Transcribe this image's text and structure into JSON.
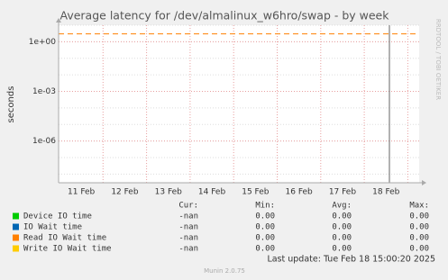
{
  "chart_data": {
    "type": "line",
    "title": "Average latency for /dev/almalinux_w6hro/swap - by week",
    "ylabel": "seconds",
    "side_text": "RRDTOOL / TOBI OETIKER",
    "log_y": true,
    "ylim": [
      3e-09,
      10
    ],
    "yticks": [
      {
        "value": 1,
        "label": "1e+00"
      },
      {
        "value": 0.001,
        "label": "1e-03"
      },
      {
        "value": 1e-06,
        "label": "1e-06"
      }
    ],
    "categories": [
      "11 Feb",
      "12 Feb",
      "13 Feb",
      "14 Feb",
      "15 Feb",
      "16 Feb",
      "17 Feb",
      "18 Feb"
    ],
    "grid": true,
    "threshold_line": {
      "value": 3,
      "color": "#ff8000"
    },
    "legend_table": {
      "headers": [
        "Cur:",
        "Min:",
        "Avg:",
        "Max:"
      ],
      "rows": [
        {
          "name": "Device IO time",
          "color": "#00cc00",
          "cells": [
            "-nan",
            "0.00",
            "0.00",
            "0.00"
          ]
        },
        {
          "name": "IO Wait time",
          "color": "#0066b3",
          "cells": [
            "-nan",
            "0.00",
            "0.00",
            "0.00"
          ]
        },
        {
          "name": "Read IO Wait time",
          "color": "#ff8000",
          "cells": [
            "-nan",
            "0.00",
            "0.00",
            "0.00"
          ]
        },
        {
          "name": "Write IO Wait time",
          "color": "#ffcc00",
          "cells": [
            "-nan",
            "0.00",
            "0.00",
            "0.00"
          ]
        }
      ]
    },
    "last_update": "Last update: Tue Feb 18 15:00:20 2025",
    "footer": "Munin 2.0.75"
  }
}
